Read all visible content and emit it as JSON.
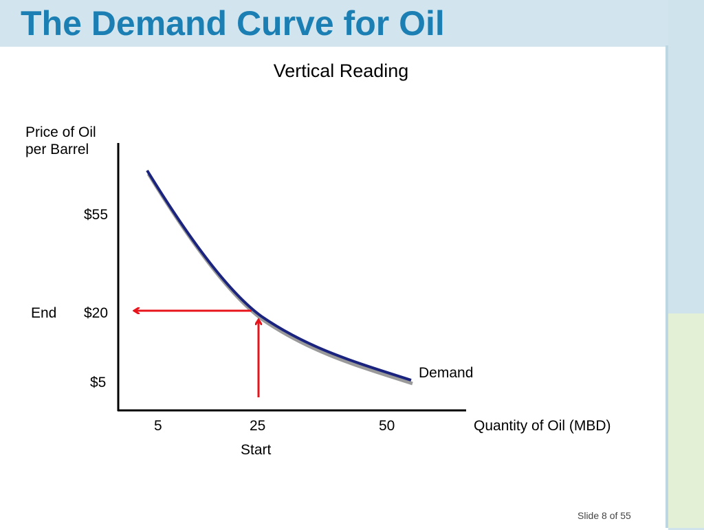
{
  "slide": {
    "title": "The Demand Curve for Oil",
    "subtitle": "Vertical Reading",
    "footer": "Slide 8 of 55"
  },
  "chart_data": {
    "type": "line",
    "ylabel_line1": "Price of Oil",
    "ylabel_line2": "per Barrel",
    "xlabel": "Quantity of Oil (MBD)",
    "y_ticks": [
      "$55",
      "$20",
      "$5"
    ],
    "x_ticks": [
      "5",
      "25",
      "50"
    ],
    "series": [
      {
        "name": "Demand"
      }
    ],
    "annotations": {
      "end_label": "End",
      "start_label": "Start"
    },
    "colors": {
      "curve": "#1a237e",
      "arrow": "#e8141c",
      "title": "#1b7fb4"
    }
  }
}
